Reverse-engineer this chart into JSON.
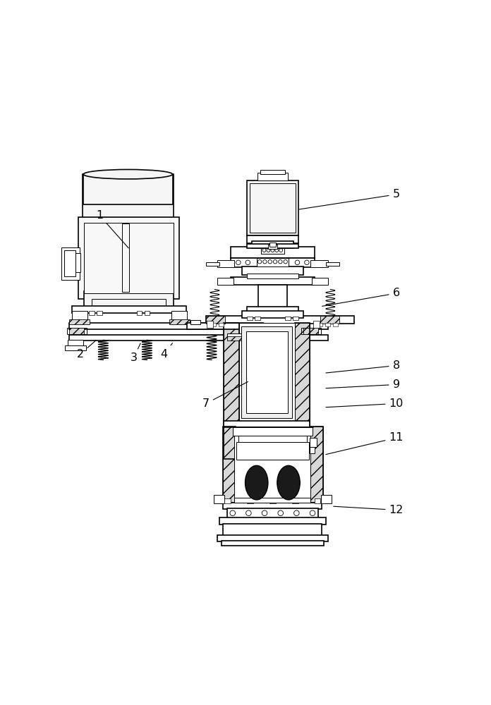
{
  "background_color": "#ffffff",
  "line_color": "#000000",
  "figsize": [
    6.96,
    10.0
  ],
  "dpi": 100,
  "labels": {
    "1": [
      0.1,
      0.13,
      0.18,
      0.22
    ],
    "2": [
      0.05,
      0.495,
      0.095,
      0.455
    ],
    "3": [
      0.19,
      0.505,
      0.21,
      0.462
    ],
    "4": [
      0.27,
      0.495,
      0.295,
      0.462
    ],
    "5": [
      0.88,
      0.075,
      0.62,
      0.115
    ],
    "6": [
      0.88,
      0.335,
      0.68,
      0.37
    ],
    "7": [
      0.38,
      0.625,
      0.495,
      0.565
    ],
    "8": [
      0.88,
      0.525,
      0.69,
      0.545
    ],
    "9": [
      0.88,
      0.575,
      0.69,
      0.585
    ],
    "10": [
      0.88,
      0.625,
      0.69,
      0.635
    ],
    "11": [
      0.88,
      0.715,
      0.69,
      0.76
    ],
    "12": [
      0.88,
      0.905,
      0.71,
      0.895
    ]
  }
}
